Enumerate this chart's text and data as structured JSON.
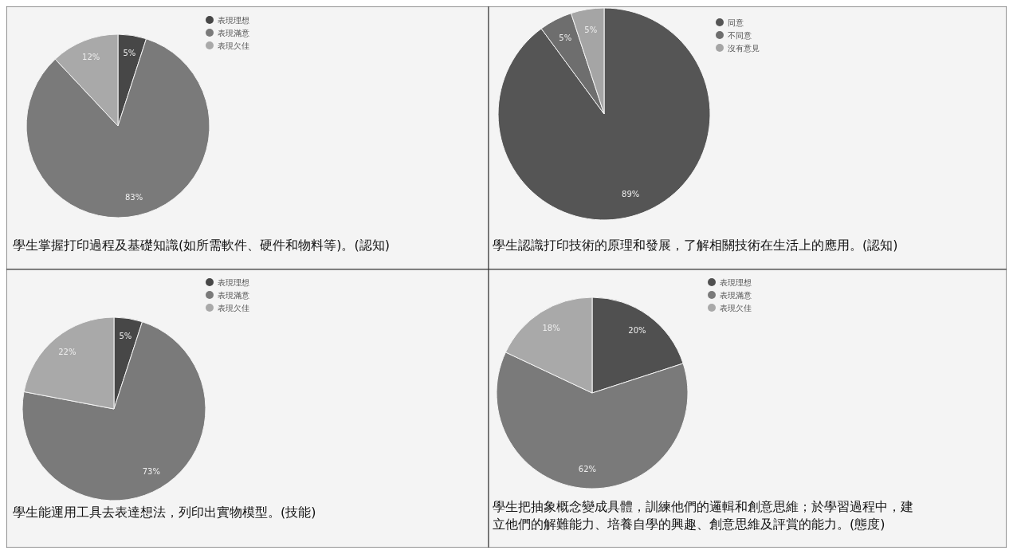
{
  "chart_data": [
    {
      "type": "pie",
      "title": "學生掌握打印過程及基礎知識(如所需軟件、硬件和物料等)。(認知)",
      "categories": [
        "表現理想",
        "表現滿意",
        "表現欠佳"
      ],
      "values": [
        5,
        83,
        12
      ],
      "value_labels": [
        "5%",
        "83%",
        "12%"
      ],
      "colors": [
        "#474747",
        "#7a7a7a",
        "#a9a9a9"
      ],
      "legend": "top right"
    },
    {
      "type": "pie",
      "title": "學生認識打印技術的原理和發展，了解相關技術在生活上的應用。(認知)",
      "categories": [
        "同意",
        "不同意",
        "沒有意見"
      ],
      "values": [
        89,
        5,
        5
      ],
      "value_labels": [
        "89%",
        "5%",
        "5%"
      ],
      "colors": [
        "#555555",
        "#6e6e6e",
        "#a5a5a5"
      ],
      "legend": "top right"
    },
    {
      "type": "pie",
      "title": "學生能運用工具去表達想法，列印出實物模型。(技能)",
      "categories": [
        "表現理想",
        "表現滿意",
        "表現欠佳"
      ],
      "values": [
        5,
        73,
        22
      ],
      "value_labels": [
        "5%",
        "73%",
        "22%"
      ],
      "colors": [
        "#474747",
        "#7a7a7a",
        "#a9a9a9"
      ],
      "legend": "top right"
    },
    {
      "type": "pie",
      "title": "學生把抽象概念變成具體，訓練他們的邏輯和創意思維；於學習過程中，建立他們的解難能力、培養自學的興趣、創意思維及評賞的能力。(態度)",
      "categories": [
        "表現理想",
        "表現滿意",
        "表現欠佳"
      ],
      "values": [
        20,
        62,
        18
      ],
      "value_labels": [
        "20%",
        "62%",
        "18%"
      ],
      "colors": [
        "#505050",
        "#7a7a7a",
        "#a9a9a9"
      ],
      "legend": "top right"
    }
  ]
}
